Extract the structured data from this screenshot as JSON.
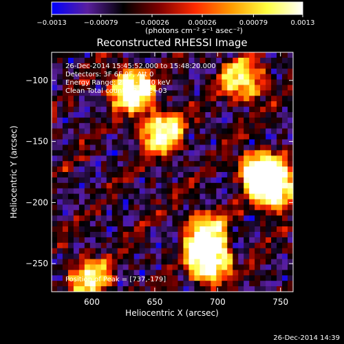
{
  "chart_data": {
    "type": "heatmap",
    "title": "Reconstructed RHESSI Image",
    "xlabel": "Heliocentric X (arcsec)",
    "ylabel": "Heliocentric Y (arcsec)",
    "xlim": [
      568,
      760
    ],
    "ylim": [
      -273,
      -77
    ],
    "x_ticks": [
      600,
      650,
      700,
      750
    ],
    "x_tick_labels": [
      "600",
      "650",
      "700",
      "750"
    ],
    "y_ticks": [
      -100,
      -150,
      -200,
      -250
    ],
    "y_tick_labels": [
      "−100",
      "−150",
      "−200",
      "−250"
    ],
    "colorbar": {
      "range": [
        -0.0013,
        0.0013
      ],
      "tick_values": [
        -0.0013,
        -0.00079,
        -0.00026,
        0.00026,
        0.00079,
        0.0013
      ],
      "tick_labels": [
        "−0.0013",
        "−0.00079",
        "−0.00026",
        "0.00026",
        "0.00079",
        "0.0013"
      ],
      "unit_label": "(photons cm⁻² s⁻¹ asec⁻²)",
      "colormap": [
        "#0000ff",
        "#5a1f9e",
        "#000000",
        "#7f0000",
        "#ff2a00",
        "#ff9a00",
        "#ffff40",
        "#ffffff"
      ]
    },
    "annotations": [
      "26-Dec-2014 15:45:52.000 to 15:48:20.000",
      "Detectors: 3F 6F 9F, Att 0",
      "Energy Range: 25.0 - 50.0 keV",
      "Clean     Total counts: 3.94E+03"
    ],
    "peak_label": "Position of Peak = [737,-179]",
    "peak_position": [
      737,
      -179
    ],
    "bright_sources": [
      {
        "x": 632,
        "y": -108,
        "level": 0.9
      },
      {
        "x": 655,
        "y": -142,
        "level": 0.75
      },
      {
        "x": 735,
        "y": -175,
        "level": 1.0
      },
      {
        "x": 745,
        "y": -190,
        "level": 0.85
      },
      {
        "x": 693,
        "y": -248,
        "level": 0.95
      },
      {
        "x": 690,
        "y": -225,
        "level": 0.7
      },
      {
        "x": 720,
        "y": -100,
        "level": 0.65
      },
      {
        "x": 598,
        "y": -262,
        "level": 0.6
      }
    ],
    "grid": false
  },
  "footer": {
    "timestamp": "26-Dec-2014 14:39"
  }
}
